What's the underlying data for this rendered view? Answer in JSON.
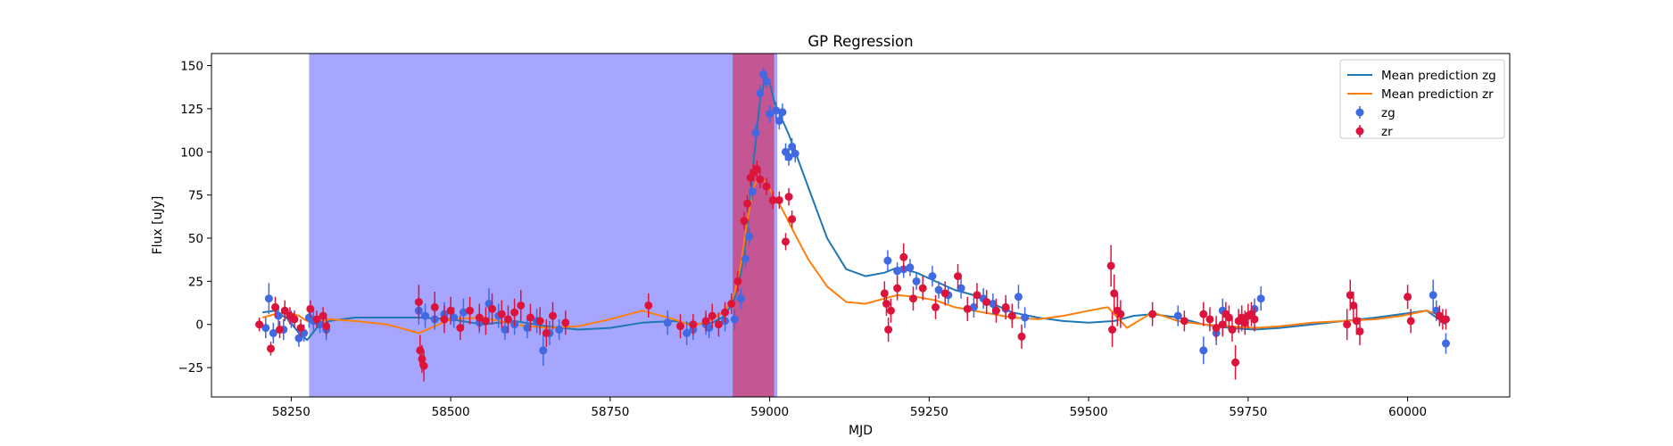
{
  "chart_data": {
    "type": "scatter",
    "title": "GP Regression",
    "xlabel": "MJD",
    "ylabel": "Flux [uJy]",
    "xlim": [
      58125,
      60160
    ],
    "ylim": [
      -42,
      157
    ],
    "xticks": [
      58250,
      58500,
      58750,
      59000,
      59250,
      59500,
      59750,
      60000
    ],
    "yticks": [
      -25,
      0,
      25,
      50,
      75,
      100,
      125,
      150
    ],
    "grid": false,
    "legend_position": "top-right",
    "spans": [
      {
        "x0": 58278,
        "x1": 59012,
        "color": "#0000ff",
        "opacity": 0.35
      },
      {
        "x0": 58942,
        "x1": 59007,
        "color": "#dc143c",
        "opacity": 0.55
      }
    ],
    "series": [
      {
        "name": "Mean prediction zg",
        "kind": "line",
        "color": "#1f77b4",
        "x": [
          58205,
          58225,
          58245,
          58262,
          58275,
          58290,
          58310,
          58350,
          58400,
          58450,
          58500,
          58550,
          58600,
          58650,
          58700,
          58750,
          58800,
          58850,
          58880,
          58910,
          58930,
          58945,
          58955,
          58965,
          58975,
          58985,
          58993,
          59000,
          59008,
          59018,
          59030,
          59045,
          59065,
          59090,
          59120,
          59150,
          59180,
          59200,
          59230,
          59260,
          59290,
          59320,
          59350,
          59380,
          59420,
          59460,
          59500,
          59540,
          59570,
          59600,
          59640,
          59680,
          59720,
          59760,
          59800,
          59850,
          59900,
          59950,
          59990,
          60030,
          60060
        ],
        "y": [
          7,
          8,
          3,
          -5,
          -9,
          -2,
          2,
          4,
          4,
          4,
          3,
          0,
          2,
          -1,
          -3,
          -2,
          1,
          2,
          0,
          1,
          5,
          15,
          30,
          55,
          95,
          130,
          143,
          140,
          128,
          120,
          110,
          95,
          75,
          50,
          32,
          28,
          30,
          33,
          30,
          25,
          20,
          17,
          12,
          7,
          4,
          2,
          1,
          2,
          5,
          6,
          4,
          0,
          -2,
          -3,
          -2,
          0,
          2,
          4,
          6,
          8,
          0
        ]
      },
      {
        "name": "Mean prediction zr",
        "kind": "line",
        "color": "#ff7f0e",
        "x": [
          58205,
          58225,
          58245,
          58262,
          58275,
          58290,
          58310,
          58350,
          58400,
          58450,
          58500,
          58550,
          58600,
          58650,
          58700,
          58750,
          58800,
          58850,
          58880,
          58910,
          58930,
          58945,
          58955,
          58965,
          58975,
          58985,
          58995,
          59005,
          59015,
          59025,
          59040,
          59060,
          59090,
          59120,
          59150,
          59180,
          59200,
          59230,
          59260,
          59290,
          59320,
          59350,
          59380,
          59420,
          59460,
          59500,
          59530,
          59560,
          59600,
          59640,
          59680,
          59720,
          59760,
          59800,
          59850,
          59900,
          59950,
          59990,
          60030,
          60060
        ],
        "y": [
          4,
          6,
          7,
          5,
          2,
          1,
          3,
          2,
          0,
          -5,
          3,
          4,
          0,
          -2,
          -1,
          3,
          8,
          3,
          -1,
          3,
          8,
          18,
          35,
          60,
          80,
          86,
          82,
          75,
          70,
          63,
          52,
          38,
          22,
          13,
          12,
          15,
          17,
          16,
          14,
          10,
          8,
          6,
          4,
          3,
          5,
          8,
          10,
          -2,
          7,
          2,
          0,
          -1,
          -2,
          -1,
          1,
          2,
          3,
          5,
          8,
          4
        ]
      },
      {
        "name": "zg",
        "kind": "errorbar",
        "color": "#4169e1",
        "x": [
          58210,
          58215,
          58222,
          58230,
          58238,
          58250,
          58262,
          58270,
          58278,
          58285,
          58295,
          58305,
          58450,
          58460,
          58475,
          58490,
          58505,
          58520,
          58545,
          58560,
          58575,
          58585,
          58600,
          58620,
          58635,
          58645,
          58655,
          58670,
          58840,
          58870,
          58880,
          58900,
          58905,
          58930,
          58945,
          58955,
          58962,
          58968,
          58973,
          58978,
          58985,
          58990,
          58995,
          59000,
          59010,
          59015,
          59020,
          59025,
          59030,
          59035,
          59040,
          59185,
          59200,
          59210,
          59220,
          59230,
          59255,
          59265,
          59280,
          59300,
          59320,
          59335,
          59350,
          59370,
          59390,
          59400,
          59640,
          59680,
          59700,
          59710,
          59740,
          59760,
          59770,
          60040,
          60045,
          60060
        ],
        "y": [
          -2,
          15,
          -5,
          5,
          -3,
          3,
          -8,
          -5,
          4,
          2,
          0,
          -3,
          8,
          5,
          3,
          6,
          4,
          7,
          1,
          12,
          5,
          -3,
          0,
          -2,
          2,
          -15,
          -5,
          -3,
          1,
          -5,
          -3,
          0,
          -2,
          2,
          3,
          15,
          38,
          51,
          77,
          111,
          134,
          145,
          141,
          122,
          124,
          118,
          123,
          100,
          97,
          103,
          99,
          37,
          31,
          32,
          33,
          25,
          28,
          20,
          17,
          21,
          10,
          15,
          12,
          9,
          16,
          4,
          5,
          -15,
          -5,
          8,
          2,
          9,
          15,
          17,
          8,
          -11
        ],
        "err": [
          6,
          9,
          6,
          6,
          6,
          5,
          5,
          5,
          6,
          6,
          5,
          6,
          8,
          7,
          6,
          7,
          6,
          8,
          6,
          9,
          7,
          6,
          6,
          6,
          7,
          9,
          7,
          6,
          7,
          7,
          6,
          6,
          6,
          6,
          6,
          6,
          5,
          5,
          5,
          5,
          5,
          4,
          4,
          5,
          5,
          5,
          5,
          5,
          5,
          5,
          5,
          6,
          5,
          5,
          5,
          5,
          6,
          5,
          5,
          6,
          6,
          6,
          6,
          6,
          7,
          6,
          6,
          8,
          7,
          7,
          6,
          6,
          7,
          9,
          6,
          6
        ]
      },
      {
        "name": "zr",
        "kind": "errorbar",
        "color": "#dc143c",
        "x": [
          58200,
          58218,
          58225,
          58232,
          58240,
          58248,
          58255,
          58265,
          58280,
          58290,
          58300,
          58305,
          58450,
          58452,
          58455,
          58458,
          58475,
          58490,
          58500,
          58515,
          58530,
          58545,
          58555,
          58565,
          58580,
          58590,
          58600,
          58610,
          58625,
          58640,
          58650,
          58660,
          58680,
          58810,
          58860,
          58880,
          58900,
          58910,
          58920,
          58930,
          58940,
          58950,
          58960,
          58965,
          58970,
          58975,
          58980,
          58985,
          58995,
          59005,
          59015,
          59025,
          59030,
          59035,
          59180,
          59183,
          59186,
          59190,
          59200,
          59210,
          59225,
          59240,
          59260,
          59275,
          59295,
          59310,
          59325,
          59340,
          59355,
          59370,
          59380,
          59395,
          59535,
          59537,
          59540,
          59545,
          59550,
          59600,
          59650,
          59680,
          59690,
          59700,
          59710,
          59715,
          59720,
          59725,
          59730,
          59735,
          59740,
          59745,
          59750,
          59755,
          59760,
          59905,
          59910,
          59915,
          59920,
          59925,
          60000,
          60005,
          60050,
          60055,
          60060
        ],
        "y": [
          0,
          -14,
          10,
          -3,
          8,
          5,
          3,
          -2,
          9,
          3,
          5,
          -1,
          13,
          -15,
          -20,
          -24,
          10,
          3,
          8,
          -2,
          8,
          4,
          2,
          9,
          6,
          3,
          7,
          11,
          4,
          2,
          -5,
          5,
          1,
          11,
          -1,
          0,
          2,
          5,
          0,
          7,
          12,
          25,
          60,
          70,
          85,
          88,
          90,
          84,
          80,
          72,
          72,
          48,
          74,
          61,
          18,
          12,
          -3,
          8,
          21,
          39,
          15,
          21,
          10,
          18,
          28,
          9,
          17,
          13,
          8,
          10,
          5,
          -7,
          34,
          -3,
          18,
          8,
          6,
          6,
          2,
          6,
          3,
          -2,
          0,
          6,
          4,
          -3,
          -22,
          2,
          4,
          1,
          5,
          6,
          3,
          0,
          17,
          11,
          2,
          -4,
          16,
          2,
          5,
          3,
          3
        ],
        "err": [
          4,
          4,
          6,
          5,
          6,
          5,
          5,
          5,
          5,
          5,
          5,
          5,
          10,
          9,
          8,
          9,
          9,
          8,
          8,
          7,
          8,
          8,
          8,
          9,
          8,
          8,
          8,
          9,
          8,
          8,
          8,
          8,
          7,
          7,
          7,
          6,
          6,
          7,
          7,
          6,
          6,
          6,
          5,
          5,
          5,
          5,
          5,
          5,
          5,
          5,
          5,
          5,
          5,
          5,
          7,
          7,
          7,
          7,
          7,
          8,
          7,
          7,
          7,
          7,
          7,
          7,
          7,
          7,
          7,
          7,
          7,
          7,
          12,
          10,
          11,
          9,
          8,
          7,
          6,
          7,
          7,
          7,
          7,
          7,
          7,
          7,
          10,
          7,
          7,
          7,
          7,
          7,
          7,
          9,
          9,
          8,
          8,
          8,
          7,
          7,
          6,
          6,
          6
        ]
      }
    ]
  }
}
